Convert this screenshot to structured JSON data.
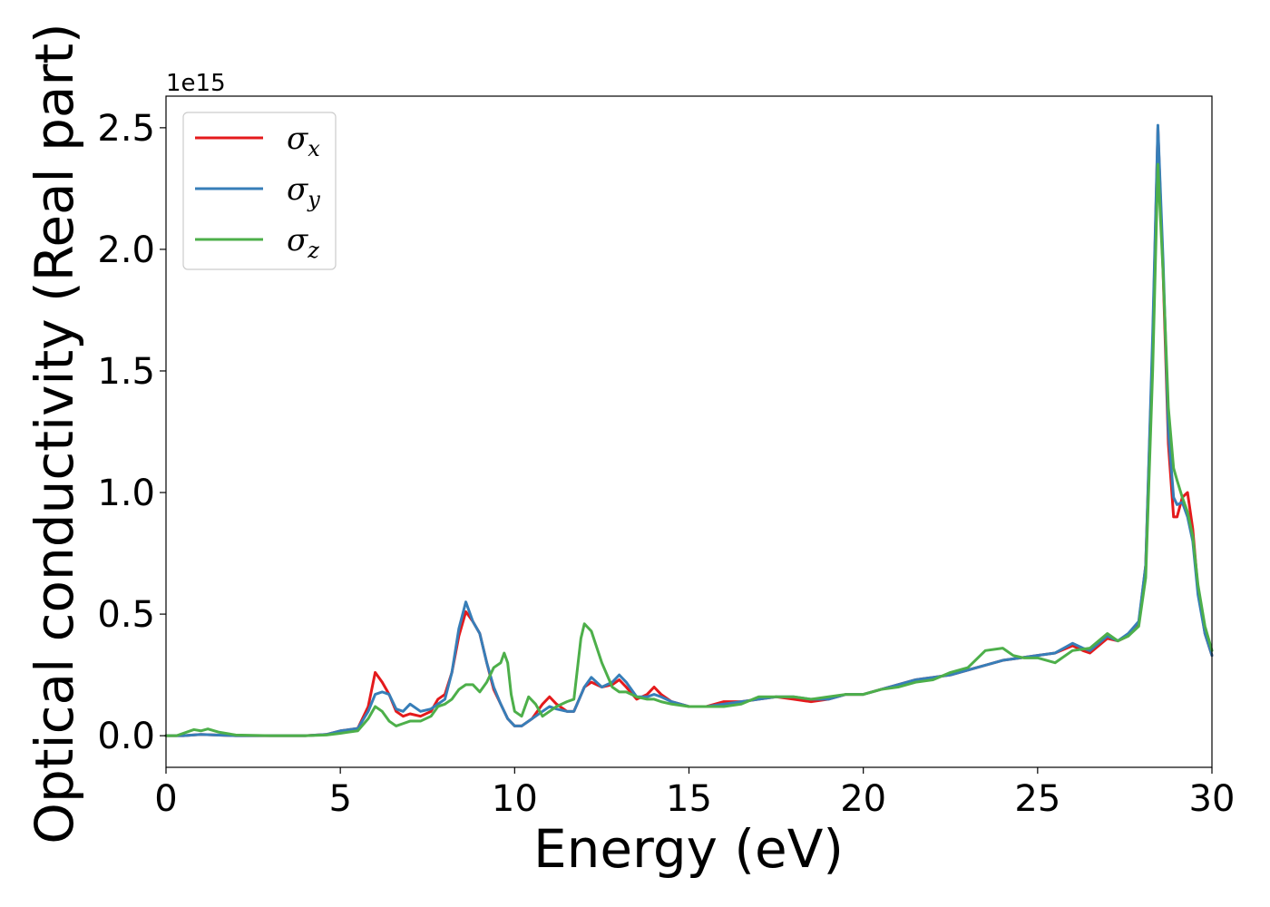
{
  "chart_data": {
    "type": "line",
    "title": "",
    "xlabel": "Energy (eV)",
    "ylabel": "Optical conductivity (Real part)",
    "y_offset_text": "1e15",
    "y_scale_factor": 1000000000000000.0,
    "xlim": [
      0,
      30
    ],
    "ylim": [
      -0.13,
      2.63
    ],
    "xticks": [
      0,
      5,
      10,
      15,
      20,
      25,
      30
    ],
    "xtick_labels": [
      "0",
      "5",
      "10",
      "15",
      "20",
      "25",
      "30"
    ],
    "yticks": [
      0.0,
      0.5,
      1.0,
      1.5,
      2.0,
      2.5
    ],
    "ytick_labels": [
      "0.0",
      "0.5",
      "1.0",
      "1.5",
      "2.0",
      "2.5"
    ],
    "grid": false,
    "legend_position": "upper-left",
    "series": [
      {
        "name": "σx",
        "name_base": "σ",
        "name_sub": "x",
        "color": "#e41a1c",
        "points": [
          [
            0,
            0.0
          ],
          [
            0.5,
            0.0
          ],
          [
            1,
            0.005
          ],
          [
            2,
            0.0
          ],
          [
            3,
            0.0
          ],
          [
            4,
            0.0
          ],
          [
            4.6,
            0.005
          ],
          [
            5,
            0.02
          ],
          [
            5.5,
            0.03
          ],
          [
            5.8,
            0.12
          ],
          [
            6.0,
            0.26
          ],
          [
            6.2,
            0.22
          ],
          [
            6.4,
            0.17
          ],
          [
            6.6,
            0.1
          ],
          [
            6.8,
            0.08
          ],
          [
            7.0,
            0.09
          ],
          [
            7.3,
            0.08
          ],
          [
            7.6,
            0.1
          ],
          [
            7.8,
            0.15
          ],
          [
            8.0,
            0.17
          ],
          [
            8.2,
            0.26
          ],
          [
            8.4,
            0.41
          ],
          [
            8.6,
            0.51
          ],
          [
            8.8,
            0.47
          ],
          [
            9.0,
            0.42
          ],
          [
            9.2,
            0.3
          ],
          [
            9.4,
            0.19
          ],
          [
            9.6,
            0.13
          ],
          [
            9.8,
            0.07
          ],
          [
            10.0,
            0.04
          ],
          [
            10.2,
            0.04
          ],
          [
            10.5,
            0.07
          ],
          [
            10.8,
            0.13
          ],
          [
            11.0,
            0.16
          ],
          [
            11.2,
            0.13
          ],
          [
            11.5,
            0.1
          ],
          [
            11.7,
            0.1
          ],
          [
            12.0,
            0.2
          ],
          [
            12.2,
            0.22
          ],
          [
            12.5,
            0.2
          ],
          [
            12.8,
            0.21
          ],
          [
            13.0,
            0.23
          ],
          [
            13.2,
            0.2
          ],
          [
            13.5,
            0.15
          ],
          [
            13.8,
            0.17
          ],
          [
            14.0,
            0.2
          ],
          [
            14.2,
            0.17
          ],
          [
            14.5,
            0.14
          ],
          [
            15.0,
            0.12
          ],
          [
            15.5,
            0.12
          ],
          [
            16.0,
            0.14
          ],
          [
            16.5,
            0.14
          ],
          [
            17.0,
            0.15
          ],
          [
            17.5,
            0.16
          ],
          [
            18.0,
            0.15
          ],
          [
            18.5,
            0.14
          ],
          [
            19.0,
            0.15
          ],
          [
            19.5,
            0.17
          ],
          [
            20.0,
            0.17
          ],
          [
            20.5,
            0.19
          ],
          [
            21.0,
            0.21
          ],
          [
            21.5,
            0.23
          ],
          [
            22.0,
            0.24
          ],
          [
            22.5,
            0.25
          ],
          [
            23.0,
            0.27
          ],
          [
            23.5,
            0.29
          ],
          [
            24.0,
            0.31
          ],
          [
            24.5,
            0.32
          ],
          [
            25.0,
            0.33
          ],
          [
            25.5,
            0.34
          ],
          [
            26.0,
            0.37
          ],
          [
            26.3,
            0.35
          ],
          [
            26.5,
            0.34
          ],
          [
            27.0,
            0.4
          ],
          [
            27.3,
            0.39
          ],
          [
            27.6,
            0.41
          ],
          [
            27.9,
            0.46
          ],
          [
            28.1,
            0.7
          ],
          [
            28.3,
            1.6
          ],
          [
            28.45,
            2.5
          ],
          [
            28.6,
            1.9
          ],
          [
            28.75,
            1.2
          ],
          [
            28.9,
            0.9
          ],
          [
            29.0,
            0.9
          ],
          [
            29.15,
            0.98
          ],
          [
            29.3,
            1.0
          ],
          [
            29.45,
            0.85
          ],
          [
            29.6,
            0.6
          ],
          [
            29.8,
            0.42
          ],
          [
            30.0,
            0.33
          ]
        ]
      },
      {
        "name": "σy",
        "name_base": "σ",
        "name_sub": "y",
        "color": "#377eb8",
        "points": [
          [
            0,
            0.0
          ],
          [
            0.5,
            0.0
          ],
          [
            1,
            0.005
          ],
          [
            2,
            0.0
          ],
          [
            3,
            0.0
          ],
          [
            4,
            0.0
          ],
          [
            4.6,
            0.005
          ],
          [
            5,
            0.02
          ],
          [
            5.5,
            0.03
          ],
          [
            5.8,
            0.1
          ],
          [
            6.0,
            0.17
          ],
          [
            6.2,
            0.18
          ],
          [
            6.4,
            0.17
          ],
          [
            6.6,
            0.11
          ],
          [
            6.8,
            0.1
          ],
          [
            7.0,
            0.13
          ],
          [
            7.3,
            0.1
          ],
          [
            7.6,
            0.11
          ],
          [
            7.8,
            0.13
          ],
          [
            8.0,
            0.15
          ],
          [
            8.2,
            0.26
          ],
          [
            8.4,
            0.44
          ],
          [
            8.6,
            0.55
          ],
          [
            8.8,
            0.47
          ],
          [
            9.0,
            0.42
          ],
          [
            9.2,
            0.3
          ],
          [
            9.4,
            0.2
          ],
          [
            9.6,
            0.13
          ],
          [
            9.8,
            0.07
          ],
          [
            10.0,
            0.04
          ],
          [
            10.2,
            0.04
          ],
          [
            10.5,
            0.07
          ],
          [
            10.8,
            0.1
          ],
          [
            11.0,
            0.12
          ],
          [
            11.2,
            0.11
          ],
          [
            11.5,
            0.1
          ],
          [
            11.7,
            0.1
          ],
          [
            12.0,
            0.2
          ],
          [
            12.2,
            0.24
          ],
          [
            12.5,
            0.2
          ],
          [
            12.8,
            0.22
          ],
          [
            13.0,
            0.25
          ],
          [
            13.2,
            0.22
          ],
          [
            13.5,
            0.16
          ],
          [
            13.8,
            0.16
          ],
          [
            14.0,
            0.17
          ],
          [
            14.2,
            0.16
          ],
          [
            14.5,
            0.14
          ],
          [
            15.0,
            0.12
          ],
          [
            15.5,
            0.12
          ],
          [
            16.0,
            0.13
          ],
          [
            16.5,
            0.14
          ],
          [
            17.0,
            0.15
          ],
          [
            17.5,
            0.16
          ],
          [
            18.0,
            0.16
          ],
          [
            18.5,
            0.15
          ],
          [
            19.0,
            0.15
          ],
          [
            19.5,
            0.17
          ],
          [
            20.0,
            0.17
          ],
          [
            20.5,
            0.19
          ],
          [
            21.0,
            0.21
          ],
          [
            21.5,
            0.23
          ],
          [
            22.0,
            0.24
          ],
          [
            22.5,
            0.25
          ],
          [
            23.0,
            0.27
          ],
          [
            23.5,
            0.29
          ],
          [
            24.0,
            0.31
          ],
          [
            24.5,
            0.32
          ],
          [
            25.0,
            0.33
          ],
          [
            25.5,
            0.34
          ],
          [
            26.0,
            0.38
          ],
          [
            26.3,
            0.36
          ],
          [
            26.5,
            0.35
          ],
          [
            27.0,
            0.41
          ],
          [
            27.3,
            0.39
          ],
          [
            27.6,
            0.42
          ],
          [
            27.9,
            0.47
          ],
          [
            28.1,
            0.7
          ],
          [
            28.3,
            1.65
          ],
          [
            28.45,
            2.51
          ],
          [
            28.6,
            1.95
          ],
          [
            28.75,
            1.25
          ],
          [
            28.9,
            0.98
          ],
          [
            29.0,
            0.95
          ],
          [
            29.15,
            0.96
          ],
          [
            29.3,
            0.9
          ],
          [
            29.45,
            0.8
          ],
          [
            29.6,
            0.58
          ],
          [
            29.8,
            0.42
          ],
          [
            30.0,
            0.33
          ]
        ]
      },
      {
        "name": "σz",
        "name_base": "σ",
        "name_sub": "z",
        "color": "#4daf4a",
        "points": [
          [
            0,
            0.0
          ],
          [
            0.3,
            0.0
          ],
          [
            0.8,
            0.025
          ],
          [
            1.0,
            0.02
          ],
          [
            1.2,
            0.028
          ],
          [
            1.5,
            0.015
          ],
          [
            2,
            0.003
          ],
          [
            3,
            0.0
          ],
          [
            4,
            0.0
          ],
          [
            4.6,
            0.003
          ],
          [
            5,
            0.01
          ],
          [
            5.5,
            0.02
          ],
          [
            5.8,
            0.07
          ],
          [
            6.0,
            0.12
          ],
          [
            6.2,
            0.1
          ],
          [
            6.4,
            0.06
          ],
          [
            6.6,
            0.04
          ],
          [
            6.8,
            0.05
          ],
          [
            7.0,
            0.06
          ],
          [
            7.3,
            0.06
          ],
          [
            7.6,
            0.08
          ],
          [
            7.8,
            0.12
          ],
          [
            8.0,
            0.13
          ],
          [
            8.2,
            0.15
          ],
          [
            8.4,
            0.19
          ],
          [
            8.6,
            0.21
          ],
          [
            8.8,
            0.21
          ],
          [
            9.0,
            0.18
          ],
          [
            9.2,
            0.22
          ],
          [
            9.4,
            0.28
          ],
          [
            9.6,
            0.3
          ],
          [
            9.7,
            0.34
          ],
          [
            9.8,
            0.3
          ],
          [
            9.9,
            0.17
          ],
          [
            10.0,
            0.1
          ],
          [
            10.2,
            0.08
          ],
          [
            10.4,
            0.16
          ],
          [
            10.6,
            0.13
          ],
          [
            10.8,
            0.08
          ],
          [
            11.0,
            0.1
          ],
          [
            11.2,
            0.12
          ],
          [
            11.5,
            0.14
          ],
          [
            11.7,
            0.15
          ],
          [
            11.9,
            0.4
          ],
          [
            12.0,
            0.46
          ],
          [
            12.2,
            0.43
          ],
          [
            12.5,
            0.3
          ],
          [
            12.8,
            0.2
          ],
          [
            13.0,
            0.18
          ],
          [
            13.2,
            0.18
          ],
          [
            13.5,
            0.16
          ],
          [
            13.8,
            0.15
          ],
          [
            14.0,
            0.15
          ],
          [
            14.2,
            0.14
          ],
          [
            14.5,
            0.13
          ],
          [
            15.0,
            0.12
          ],
          [
            15.5,
            0.12
          ],
          [
            16.0,
            0.12
          ],
          [
            16.5,
            0.13
          ],
          [
            17.0,
            0.16
          ],
          [
            17.5,
            0.16
          ],
          [
            18.0,
            0.16
          ],
          [
            18.5,
            0.15
          ],
          [
            19.0,
            0.16
          ],
          [
            19.5,
            0.17
          ],
          [
            20.0,
            0.17
          ],
          [
            20.5,
            0.19
          ],
          [
            21.0,
            0.2
          ],
          [
            21.5,
            0.22
          ],
          [
            22.0,
            0.23
          ],
          [
            22.5,
            0.26
          ],
          [
            23.0,
            0.28
          ],
          [
            23.5,
            0.35
          ],
          [
            24.0,
            0.36
          ],
          [
            24.3,
            0.33
          ],
          [
            24.6,
            0.32
          ],
          [
            25.0,
            0.32
          ],
          [
            25.5,
            0.3
          ],
          [
            26.0,
            0.35
          ],
          [
            26.5,
            0.36
          ],
          [
            27.0,
            0.42
          ],
          [
            27.3,
            0.39
          ],
          [
            27.6,
            0.41
          ],
          [
            27.9,
            0.45
          ],
          [
            28.1,
            0.65
          ],
          [
            28.3,
            1.5
          ],
          [
            28.45,
            2.35
          ],
          [
            28.6,
            1.9
          ],
          [
            28.75,
            1.35
          ],
          [
            28.9,
            1.1
          ],
          [
            29.0,
            1.05
          ],
          [
            29.15,
            0.98
          ],
          [
            29.3,
            0.92
          ],
          [
            29.45,
            0.82
          ],
          [
            29.6,
            0.62
          ],
          [
            29.8,
            0.45
          ],
          [
            30.0,
            0.35
          ]
        ]
      }
    ]
  }
}
